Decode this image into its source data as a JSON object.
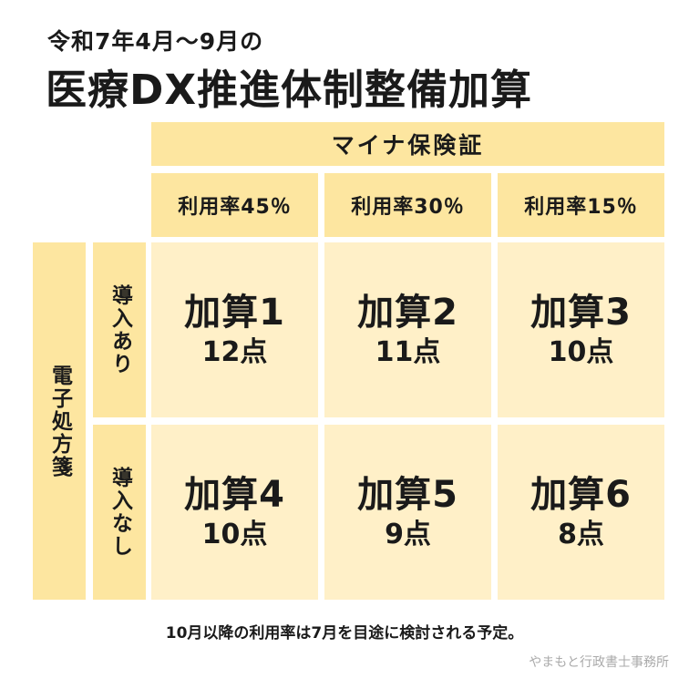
{
  "subtitle": "令和7年4月～9月の",
  "title": "医療DX推進体制整備加算",
  "header": "マイナ保険証",
  "rates": [
    "利用率45％",
    "利用率30％",
    "利用率15％"
  ],
  "row_header": "電子処方箋",
  "rows": [
    {
      "label": "導入あり",
      "cells": [
        {
          "name": "加算1",
          "points": "12点"
        },
        {
          "name": "加算2",
          "points": "11点"
        },
        {
          "name": "加算3",
          "points": "10点"
        }
      ]
    },
    {
      "label": "導入なし",
      "cells": [
        {
          "name": "加算4",
          "points": "10点"
        },
        {
          "name": "加算5",
          "points": "9点"
        },
        {
          "name": "加算6",
          "points": "8点"
        }
      ]
    }
  ],
  "note": "10月以降の利用率は7月を目途に検討される予定。",
  "credit": "やまもと行政書士事務所",
  "colors": {
    "header_bg": "#fde6a0",
    "cell_bg": "#fff0c8",
    "text": "#1a1a1a"
  }
}
